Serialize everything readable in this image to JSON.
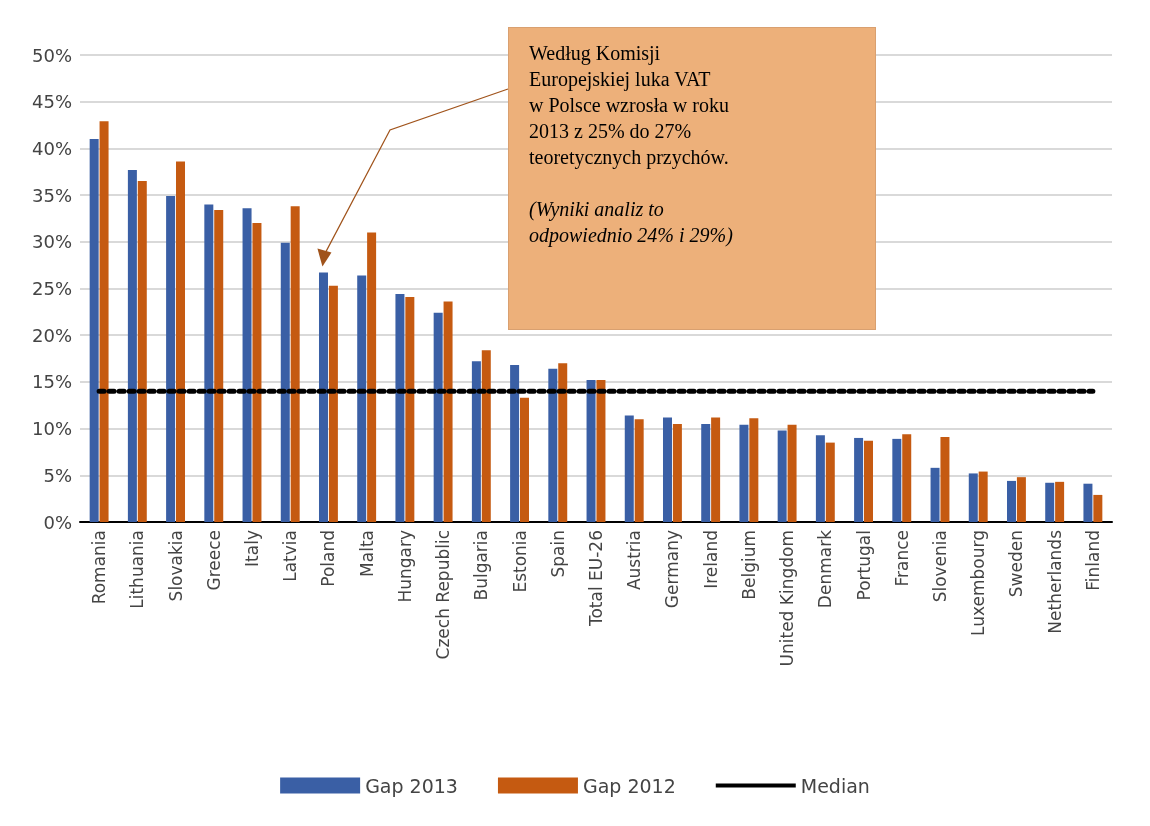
{
  "chart_data": {
    "type": "bar",
    "categories": [
      "Romania",
      "Lithuania",
      "Slovakia",
      "Greece",
      "Italy",
      "Latvia",
      "Poland",
      "Malta",
      "Hungary",
      "Czech Republic",
      "Bulgaria",
      "Estonia",
      "Spain",
      "Total EU-26",
      "Austria",
      "Germany",
      "Ireland",
      "Belgium",
      "United Kingdom",
      "Denmark",
      "Portugal",
      "France",
      "Slovenia",
      "Luxembourg",
      "Sweden",
      "Netherlands",
      "Finland"
    ],
    "series": [
      {
        "name": "Gap 2013",
        "color": "#3a5fa5",
        "values": [
          41.0,
          37.7,
          34.9,
          34.0,
          33.6,
          29.9,
          26.7,
          26.4,
          24.4,
          22.4,
          17.2,
          16.8,
          16.4,
          15.2,
          11.4,
          11.2,
          10.5,
          10.4,
          9.8,
          9.3,
          9.0,
          8.9,
          5.8,
          5.2,
          4.4,
          4.2,
          4.1
        ]
      },
      {
        "name": "Gap 2012",
        "color": "#c55a11",
        "values": [
          42.9,
          36.5,
          38.6,
          33.4,
          32.0,
          33.8,
          25.3,
          31.0,
          24.1,
          23.6,
          18.4,
          13.3,
          17.0,
          15.2,
          11.0,
          10.5,
          11.2,
          11.1,
          10.4,
          8.5,
          8.7,
          9.4,
          9.1,
          5.4,
          4.8,
          4.3,
          2.9
        ]
      },
      {
        "name": "Median",
        "type": "line",
        "color": "#000000",
        "line_style": "dotted",
        "marker": "none",
        "values": [
          14,
          14,
          14,
          14,
          14,
          14,
          14,
          14,
          14,
          14,
          14,
          14,
          14,
          14,
          14,
          14,
          14,
          14,
          14,
          14,
          14,
          14,
          14,
          14,
          14,
          14,
          14
        ]
      }
    ],
    "ylim": [
      0,
      50
    ],
    "yticks": [
      {
        "value": 0,
        "label": "0%"
      },
      {
        "value": 5,
        "label": "5%"
      },
      {
        "value": 10,
        "label": "10%"
      },
      {
        "value": 15,
        "label": "15%"
      },
      {
        "value": 20,
        "label": "20%"
      },
      {
        "value": 25,
        "label": "25%"
      },
      {
        "value": 30,
        "label": "30%"
      },
      {
        "value": 35,
        "label": "35%"
      },
      {
        "value": 40,
        "label": "40%"
      },
      {
        "value": 45,
        "label": "45%"
      },
      {
        "value": 50,
        "label": "50%"
      }
    ],
    "grid": "y",
    "legend": "bottom",
    "annotations": [
      "Według Komisji\nEuropejskiej luka  VAT\nw Polsce wzrosła w roku\n2013  z 25% do 27%\nteoretycznych przychów.",
      "(Wyniki analiz to\nodpowiednio 24% i 29%)"
    ]
  }
}
